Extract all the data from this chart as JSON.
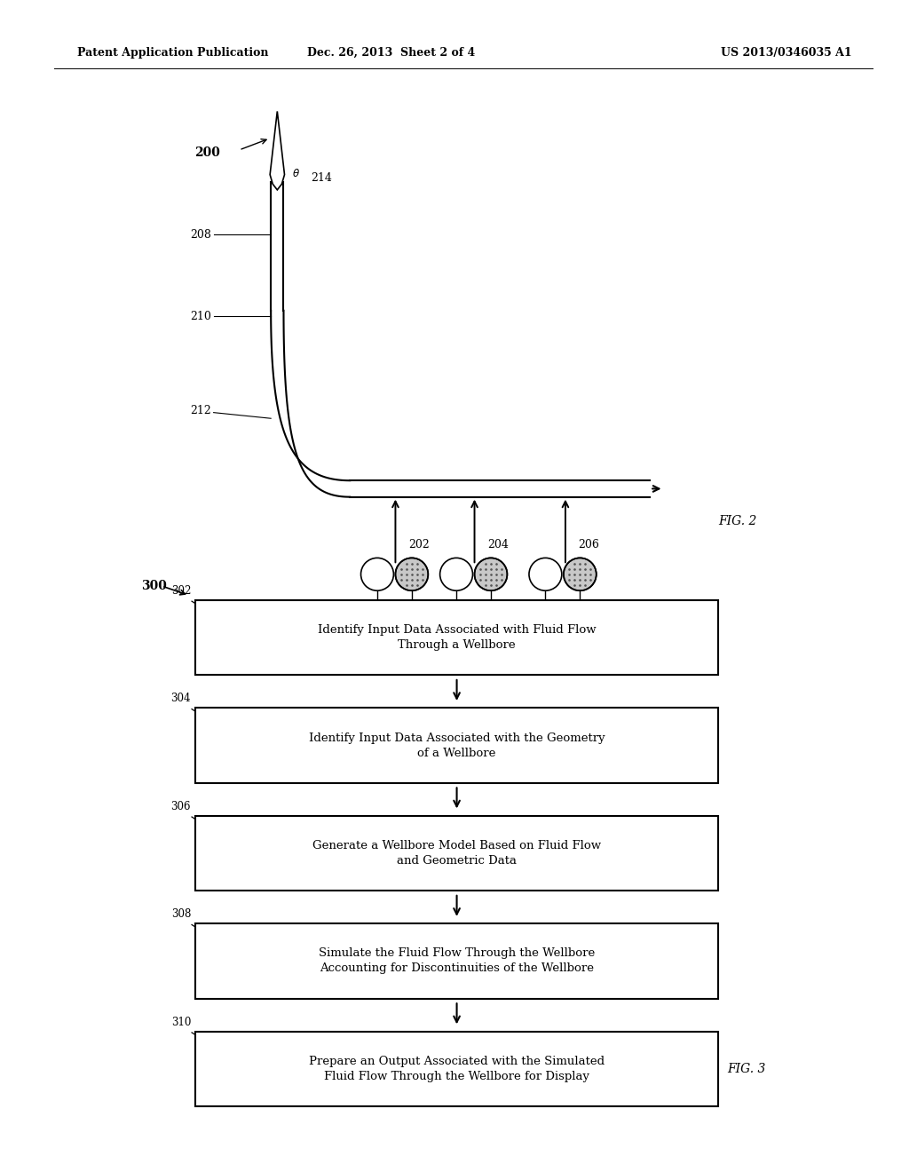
{
  "bg_color": "#ffffff",
  "header_left": "Patent Application Publication",
  "header_mid": "Dec. 26, 2013  Sheet 2 of 4",
  "header_right": "US 2013/0346035 A1",
  "fig2_label": "FIG. 2",
  "fig3_label": "FIG. 3",
  "flow_boxes": [
    {
      "id": "302",
      "text": "Identify Input Data Associated with Fluid Flow\nThrough a Wellbore"
    },
    {
      "id": "304",
      "text": "Identify Input Data Associated with the Geometry\nof a Wellbore"
    },
    {
      "id": "306",
      "text": "Generate a Wellbore Model Based on Fluid Flow\nand Geometric Data"
    },
    {
      "id": "308",
      "text": "Simulate the Fluid Flow Through the Wellbore\nAccounting for Discontinuities of the Wellbore"
    },
    {
      "id": "310",
      "text": "Prepare an Output Associated with the Simulated\nFluid Flow Through the Wellbore for Display"
    }
  ]
}
